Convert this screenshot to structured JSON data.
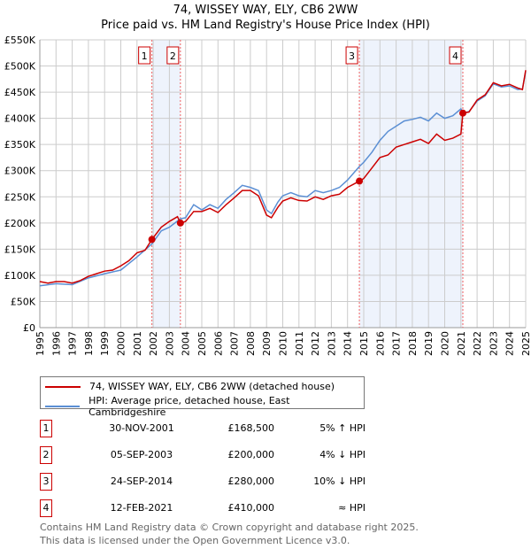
{
  "chart_data": {
    "type": "line",
    "title": "74, WISSEY WAY, ELY, CB6 2WW",
    "subtitle": "Price paid vs. HM Land Registry's House Price Index (HPI)",
    "xlim": [
      1995,
      2025
    ],
    "ylim": [
      0,
      550000
    ],
    "x_ticks": [
      "1995",
      "1996",
      "1997",
      "1998",
      "1999",
      "2000",
      "2001",
      "2002",
      "2003",
      "2004",
      "2005",
      "2006",
      "2007",
      "2008",
      "2009",
      "2010",
      "2011",
      "2012",
      "2013",
      "2014",
      "2015",
      "2016",
      "2017",
      "2018",
      "2019",
      "2020",
      "2021",
      "2022",
      "2023",
      "2024",
      "2025"
    ],
    "y_ticks": [
      {
        "v": 0,
        "l": "£0"
      },
      {
        "v": 50000,
        "l": "£50K"
      },
      {
        "v": 100000,
        "l": "£100K"
      },
      {
        "v": 150000,
        "l": "£150K"
      },
      {
        "v": 200000,
        "l": "£200K"
      },
      {
        "v": 250000,
        "l": "£250K"
      },
      {
        "v": 300000,
        "l": "£300K"
      },
      {
        "v": 350000,
        "l": "£350K"
      },
      {
        "v": 400000,
        "l": "£400K"
      },
      {
        "v": 450000,
        "l": "£450K"
      },
      {
        "v": 500000,
        "l": "£500K"
      },
      {
        "v": 550000,
        "l": "£550K"
      }
    ],
    "series": [
      {
        "name": "74, WISSEY WAY, ELY, CB6 2WW (detached house)",
        "color": "#cc0000",
        "x": [
          1995,
          1995.5,
          1996,
          1996.5,
          1997,
          1997.5,
          1998,
          1998.5,
          1999,
          1999.5,
          2000,
          2000.5,
          2001,
          2001.5,
          2001.92,
          2002.5,
          2003,
          2003.5,
          2003.68,
          2004,
          2004.5,
          2005,
          2005.5,
          2006,
          2006.5,
          2007,
          2007.5,
          2008,
          2008.5,
          2009,
          2009.3,
          2009.7,
          2010,
          2010.5,
          2011,
          2011.5,
          2012,
          2012.5,
          2013,
          2013.5,
          2014,
          2014.73,
          2015,
          2015.5,
          2016,
          2016.5,
          2017,
          2017.5,
          2018,
          2018.5,
          2019,
          2019.5,
          2020,
          2020.5,
          2021,
          2021.12,
          2021.5,
          2022,
          2022.5,
          2023,
          2023.5,
          2024,
          2024.5,
          2024.8,
          2025
        ],
        "y": [
          88000,
          85000,
          88000,
          88000,
          85000,
          90000,
          98000,
          103000,
          108000,
          110000,
          118000,
          128000,
          143000,
          148000,
          168500,
          192000,
          203000,
          212000,
          200000,
          203000,
          222000,
          222000,
          228000,
          220000,
          235000,
          248000,
          262000,
          262000,
          252000,
          215000,
          210000,
          230000,
          242000,
          248000,
          243000,
          242000,
          250000,
          245000,
          252000,
          255000,
          268000,
          280000,
          285000,
          305000,
          325000,
          330000,
          345000,
          350000,
          355000,
          360000,
          352000,
          370000,
          358000,
          362000,
          370000,
          410000,
          412000,
          435000,
          445000,
          468000,
          462000,
          465000,
          458000,
          455000,
          492000
        ]
      },
      {
        "name": "HPI: Average price, detached house, East Cambridgeshire",
        "color": "#5b8fd4",
        "x": [
          1995,
          1996,
          1997,
          1998,
          1999,
          2000,
          2001,
          2001.92,
          2002.5,
          2003,
          2003.68,
          2004,
          2004.5,
          2005,
          2005.5,
          2006,
          2006.5,
          2007,
          2007.5,
          2008,
          2008.5,
          2009,
          2009.3,
          2009.7,
          2010,
          2010.5,
          2011,
          2011.5,
          2012,
          2012.5,
          2013,
          2013.5,
          2014,
          2014.73,
          2015,
          2015.5,
          2016,
          2016.5,
          2017,
          2017.5,
          2018,
          2018.5,
          2019,
          2019.5,
          2020,
          2020.5,
          2021,
          2021.12,
          2021.5,
          2022,
          2022.5,
          2023,
          2023.5,
          2024,
          2024.5,
          2024.8,
          2025
        ],
        "y": [
          80000,
          84000,
          82000,
          95000,
          103000,
          110000,
          135000,
          160000,
          185000,
          192000,
          208000,
          210000,
          235000,
          225000,
          235000,
          228000,
          245000,
          258000,
          272000,
          268000,
          262000,
          225000,
          218000,
          240000,
          252000,
          258000,
          252000,
          250000,
          262000,
          258000,
          262000,
          268000,
          282000,
          308000,
          316000,
          335000,
          358000,
          375000,
          385000,
          395000,
          398000,
          402000,
          395000,
          410000,
          400000,
          405000,
          418000,
          410000,
          413000,
          433000,
          443000,
          466000,
          460000,
          462000,
          455000,
          456000,
          490000
        ]
      }
    ],
    "sales": [
      {
        "n": "1",
        "x": 2001.92,
        "y": 168500
      },
      {
        "n": "2",
        "x": 2003.68,
        "y": 200000
      },
      {
        "n": "3",
        "x": 2014.73,
        "y": 280000
      },
      {
        "n": "4",
        "x": 2021.12,
        "y": 410000
      }
    ],
    "shaded": [
      [
        2001.92,
        2003.68
      ],
      [
        2014.73,
        2021.12
      ]
    ],
    "grid": true
  },
  "legend": [
    "74, WISSEY WAY, ELY, CB6 2WW (detached house)",
    "HPI: Average price, detached house, East Cambridgeshire"
  ],
  "transactions": [
    {
      "n": "1",
      "date": "30-NOV-2001",
      "price": "£168,500",
      "hpi": "5% ↑ HPI"
    },
    {
      "n": "2",
      "date": "05-SEP-2003",
      "price": "£200,000",
      "hpi": "4% ↓ HPI"
    },
    {
      "n": "3",
      "date": "24-SEP-2014",
      "price": "£280,000",
      "hpi": "10% ↓ HPI"
    },
    {
      "n": "4",
      "date": "12-FEB-2021",
      "price": "£410,000",
      "hpi": "≈ HPI"
    }
  ],
  "footer": [
    "Contains HM Land Registry data © Crown copyright and database right 2025.",
    "This data is licensed under the Open Government Licence v3.0."
  ]
}
